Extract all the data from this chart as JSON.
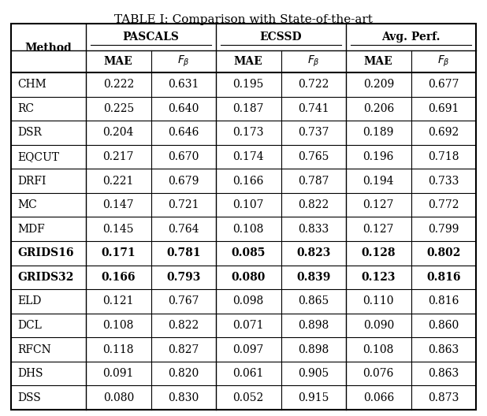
{
  "title": "TABLE I: Comparison with State-of-the-art",
  "rows": [
    [
      "CHM",
      "0.222",
      "0.631",
      "0.195",
      "0.722",
      "0.209",
      "0.677"
    ],
    [
      "RC",
      "0.225",
      "0.640",
      "0.187",
      "0.741",
      "0.206",
      "0.691"
    ],
    [
      "DSR",
      "0.204",
      "0.646",
      "0.173",
      "0.737",
      "0.189",
      "0.692"
    ],
    [
      "EQCUT",
      "0.217",
      "0.670",
      "0.174",
      "0.765",
      "0.196",
      "0.718"
    ],
    [
      "DRFI",
      "0.221",
      "0.679",
      "0.166",
      "0.787",
      "0.194",
      "0.733"
    ],
    [
      "MC",
      "0.147",
      "0.721",
      "0.107",
      "0.822",
      "0.127",
      "0.772"
    ],
    [
      "MDF",
      "0.145",
      "0.764",
      "0.108",
      "0.833",
      "0.127",
      "0.799"
    ],
    [
      "GRIDS16",
      "0.171",
      "0.781",
      "0.085",
      "0.823",
      "0.128",
      "0.802"
    ],
    [
      "GRIDS32",
      "0.166",
      "0.793",
      "0.080",
      "0.839",
      "0.123",
      "0.816"
    ],
    [
      "ELD",
      "0.121",
      "0.767",
      "0.098",
      "0.865",
      "0.110",
      "0.816"
    ],
    [
      "DCL",
      "0.108",
      "0.822",
      "0.071",
      "0.898",
      "0.090",
      "0.860"
    ],
    [
      "RFCN",
      "0.118",
      "0.827",
      "0.097",
      "0.898",
      "0.108",
      "0.863"
    ],
    [
      "DHS",
      "0.091",
      "0.820",
      "0.061",
      "0.905",
      "0.076",
      "0.863"
    ],
    [
      "DSS",
      "0.080",
      "0.830",
      "0.052",
      "0.915",
      "0.066",
      "0.873"
    ]
  ],
  "bold_rows": [
    7,
    8
  ],
  "background_color": "#ffffff",
  "line_color": "#000000",
  "text_color": "#000000",
  "title_fontsize": 11,
  "header_fontsize": 10,
  "data_fontsize": 10,
  "fig_width": 6.18,
  "fig_height": 5.28,
  "dpi": 100
}
